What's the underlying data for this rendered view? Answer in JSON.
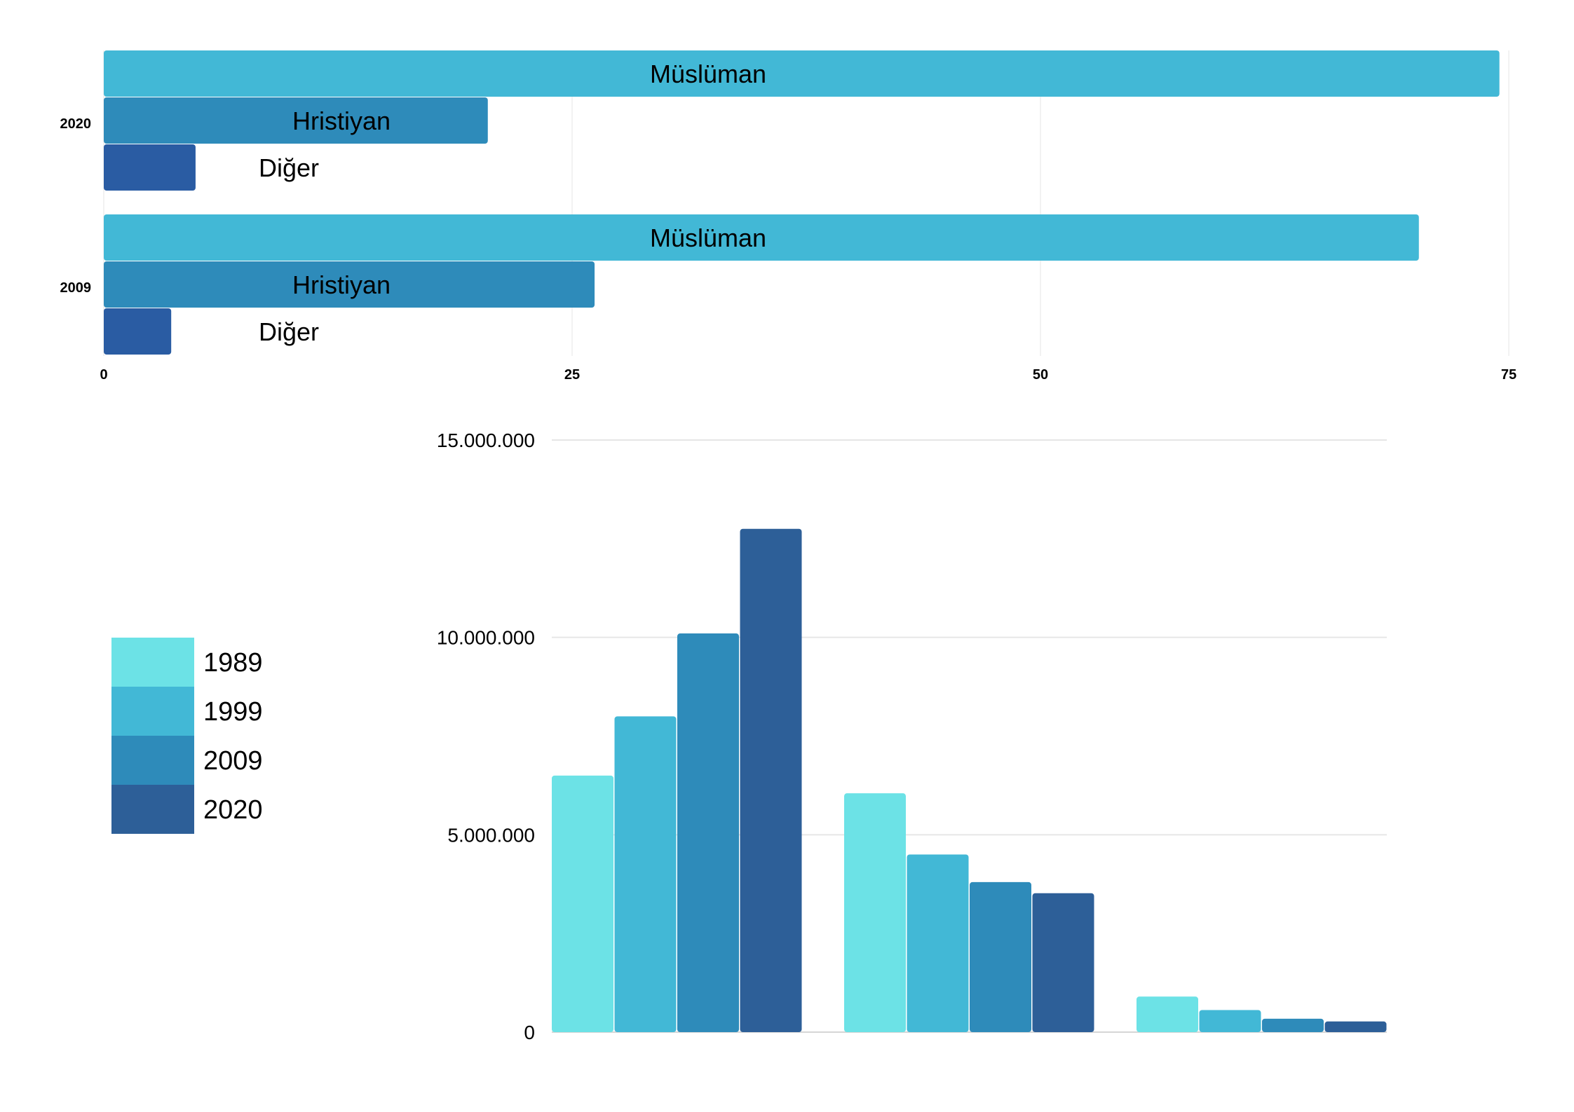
{
  "chart_data": [
    {
      "type": "bar",
      "orientation": "horizontal",
      "categories": [
        "2020",
        "2009"
      ],
      "series": [
        {
          "name": "Müslüman",
          "values": [
            74.5,
            70.2
          ],
          "color": "#42B8D6"
        },
        {
          "name": "Hristiyan",
          "values": [
            20.5,
            26.2
          ],
          "color": "#2E8BBA"
        },
        {
          "name": "Diğer",
          "values": [
            4.9,
            3.6
          ],
          "color": "#2A5CA3"
        }
      ],
      "x_ticks": [
        "0",
        "25",
        "50",
        "75"
      ],
      "xlim": [
        0,
        75
      ],
      "grid": true
    },
    {
      "type": "bar",
      "orientation": "vertical",
      "groups": 3,
      "series": [
        {
          "name": "1989",
          "values": [
            6500000,
            6050000,
            900000
          ],
          "color": "#6CE2E6"
        },
        {
          "name": "1999",
          "values": [
            8000000,
            4500000,
            560000
          ],
          "color": "#42B8D6"
        },
        {
          "name": "2009",
          "values": [
            10100000,
            3800000,
            340000
          ],
          "color": "#2E8BBA"
        },
        {
          "name": "2020",
          "values": [
            12750000,
            3520000,
            270000
          ],
          "color": "#2D5F98"
        }
      ],
      "y_ticks": [
        "0",
        "5.000.000",
        "10.000.000",
        "15.000.000"
      ],
      "ylim": [
        0,
        15000000
      ],
      "grid": true,
      "legend_position": "left"
    }
  ]
}
